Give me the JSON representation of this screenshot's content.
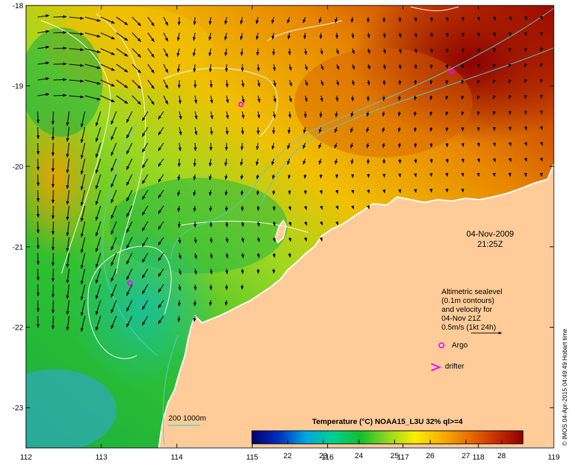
{
  "colors": {
    "land": "#ffcc99",
    "coastline": "#ffffff",
    "sst_contour": "#ffffff",
    "isobath": "#55cccc",
    "argo_marker": "#ff00ff",
    "arrow": "#000000"
  },
  "map": {
    "lon_range": [
      112,
      119
    ],
    "lat_range": [
      -23.5,
      -18
    ],
    "lon_ticks": [
      "112",
      "113",
      "114",
      "115",
      "116",
      "117",
      "118",
      "119"
    ],
    "lat_ticks": [
      "-18",
      "-19",
      "-20",
      "-21",
      "-22",
      "-23"
    ],
    "date": "04-Nov-2009",
    "time": "21:25Z",
    "argo_floats": [
      {
        "lon": 114.85,
        "lat": -19.23
      },
      {
        "lon": 113.38,
        "lat": -21.45
      },
      {
        "lon": 117.65,
        "lat": -18.82
      }
    ]
  },
  "legend": {
    "sealevel_line1": "Altimetric sealevel",
    "sealevel_line2": "(0.1m contours)",
    "sealevel_line3": "and velocity for",
    "sealevel_line4": "04-Nov 21Z",
    "sealevel_line5": "0.5m/s (1kt 24h)",
    "argo": "Argo",
    "drifter": "drifter",
    "isobath": "200  1000m"
  },
  "colorbar": {
    "title": "Temperature (°C) NOAA15_L3U 32% ql>=4",
    "ticks": [
      "22",
      "23",
      "24",
      "25",
      "26",
      "27",
      "28"
    ],
    "stops": [
      "#00006e",
      "#0030c0",
      "#00a8e0",
      "#00d090",
      "#10c030",
      "#90d820",
      "#f8f000",
      "#f8b000",
      "#e87000",
      "#c83000",
      "#8c0000"
    ]
  },
  "credit": "© IMOS 04-Apr-2015 04:49:49 Hobart time"
}
